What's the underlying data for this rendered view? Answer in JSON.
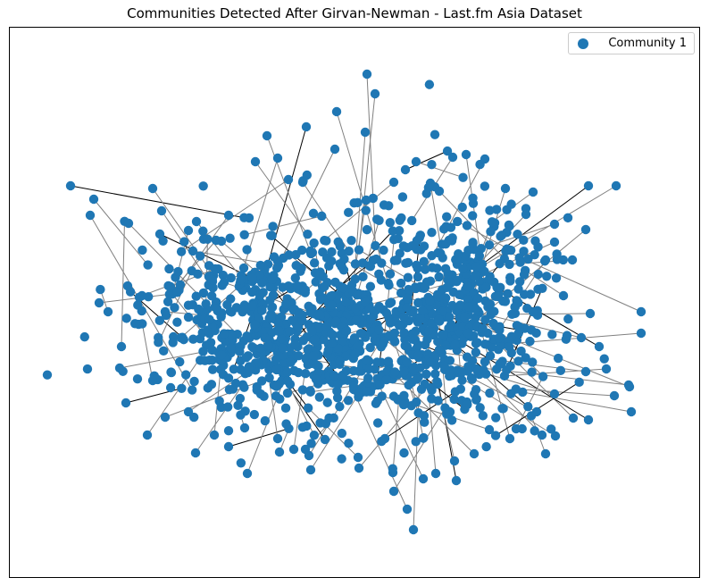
{
  "figure": {
    "title": "Communities Detected After Girvan-Newman - Last.fm Asia Dataset"
  },
  "legend": {
    "entries": [
      {
        "label": "Community 1",
        "color": "#1f77b4"
      }
    ]
  },
  "graph": {
    "node_color": "#1f77b4",
    "edge_color": "#808080",
    "dense_edge_color": "#000000"
  }
}
